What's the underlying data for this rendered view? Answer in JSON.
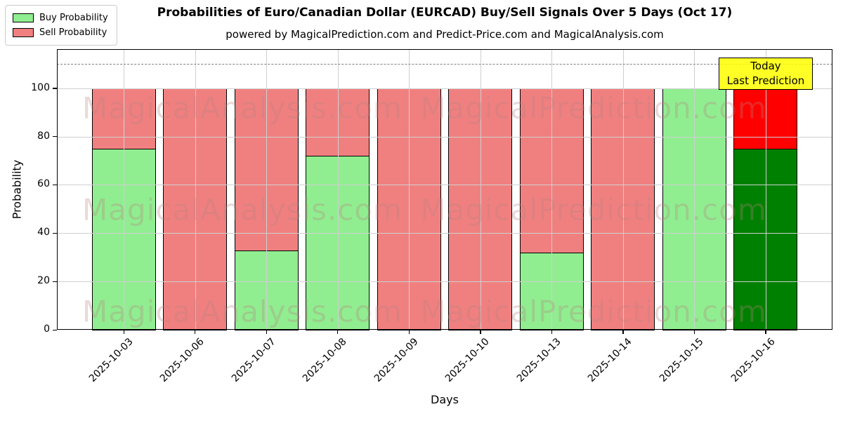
{
  "title": "Probabilities of Euro/Canadian Dollar (EURCAD) Buy/Sell Signals Over 5 Days (Oct 17)",
  "subtitle": "powered by MagicalPrediction.com and Predict-Price.com and MagicalAnalysis.com",
  "legend": {
    "items": [
      {
        "label": "Buy Probability",
        "color": "#90ee90"
      },
      {
        "label": "Sell Probability",
        "color": "#f08080"
      }
    ]
  },
  "annotation": {
    "lines": [
      "Today",
      "Last Prediction"
    ],
    "bg_color": "#ffff00"
  },
  "watermarks": {
    "left": "MagicalAnalysis.com",
    "right": "MagicalPrediction.com"
  },
  "colors": {
    "buy_normal": "#90ee90",
    "sell_normal": "#f08080",
    "buy_today": "#008000",
    "sell_today": "#ff0000",
    "bar_edge": "#000000",
    "grid": "#cfcfcf",
    "dashed_line": "#808080",
    "annotation_bg": "#ffff00"
  },
  "chart_data": {
    "type": "bar",
    "stacked": true,
    "title": "Probabilities of Euro/Canadian Dollar (EURCAD) Buy/Sell Signals Over 5 Days (Oct 17)",
    "xlabel": "Days",
    "ylabel": "Probability",
    "categories": [
      "2025-10-03",
      "2025-10-06",
      "2025-10-07",
      "2025-10-08",
      "2025-10-09",
      "2025-10-10",
      "2025-10-13",
      "2025-10-14",
      "2025-10-15",
      "2025-10-16"
    ],
    "series": [
      {
        "name": "Buy Probability",
        "values": [
          75,
          0,
          33,
          72,
          0,
          0,
          32,
          0,
          100,
          75
        ]
      },
      {
        "name": "Sell Probability",
        "values": [
          25,
          100,
          67,
          28,
          100,
          100,
          68,
          100,
          0,
          25
        ]
      }
    ],
    "today_index": 9,
    "yticks": [
      0,
      20,
      40,
      60,
      80,
      100
    ],
    "ylim": [
      0,
      116.2
    ],
    "dashed_line_y": 110,
    "grid": true,
    "legend_position": "upper left"
  }
}
